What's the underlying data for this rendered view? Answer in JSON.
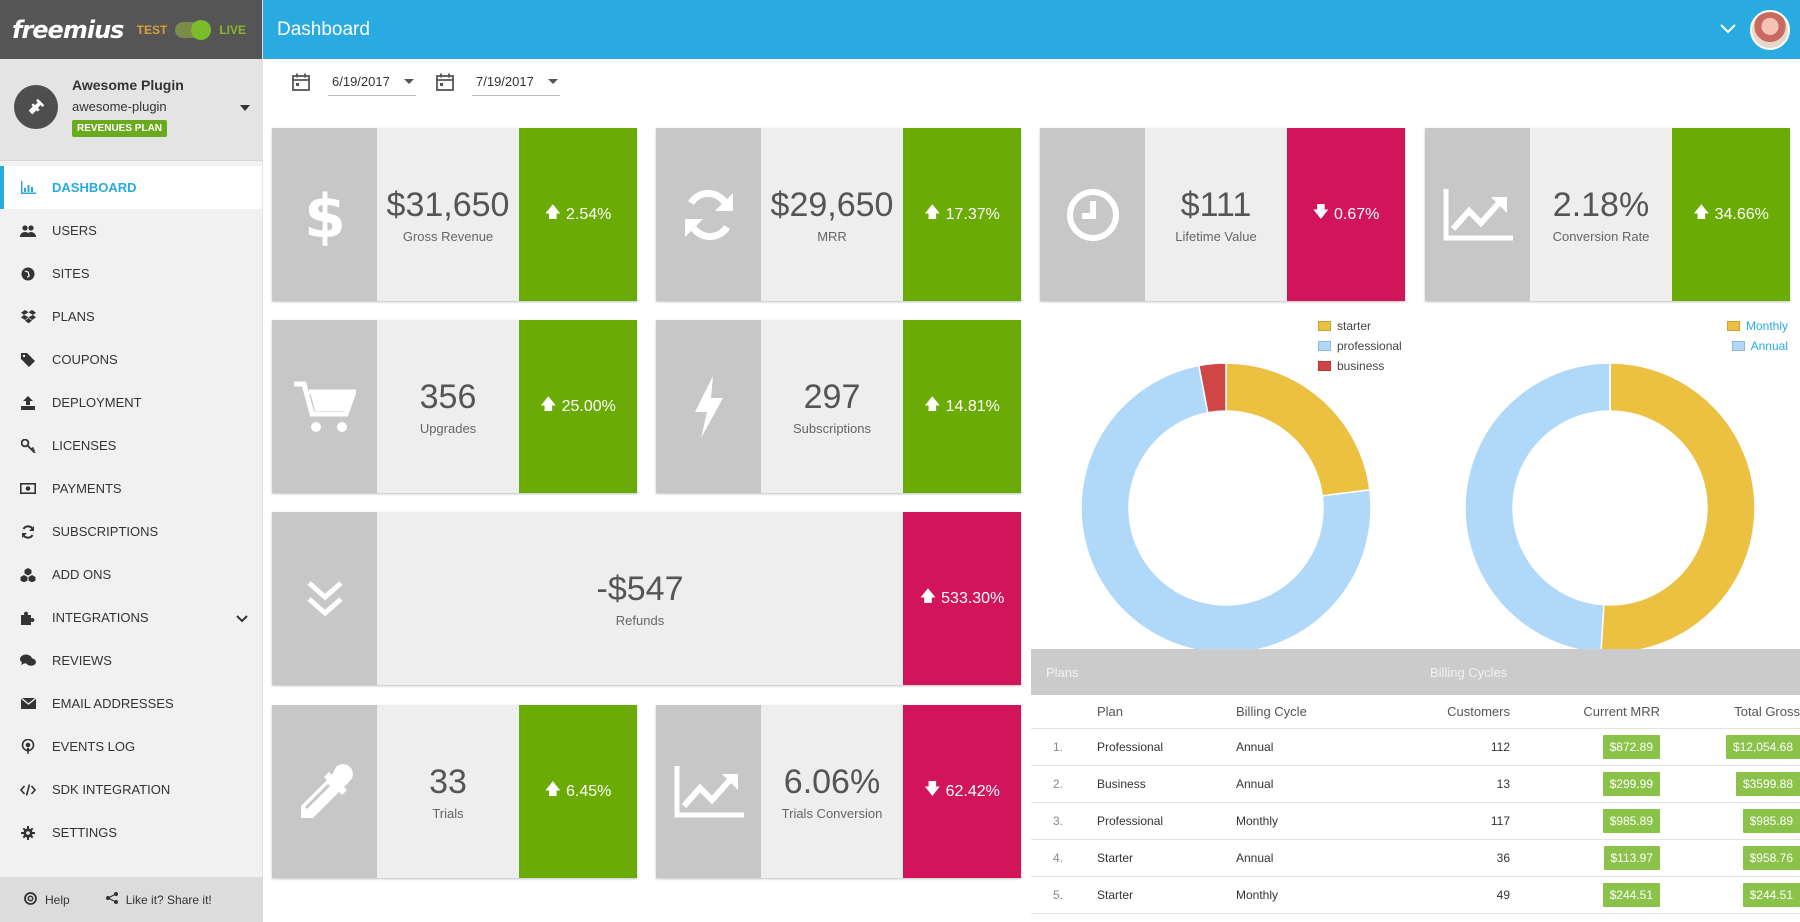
{
  "brand": {
    "logo": "freemius",
    "env_test": "TEST",
    "env_live": "LIVE"
  },
  "plugin": {
    "name": "Awesome Plugin",
    "slug": "awesome-plugin",
    "plan_badge": "REVENUES PLAN"
  },
  "nav": [
    {
      "label": "DASHBOARD",
      "icon": "bar-chart-icon",
      "active": true
    },
    {
      "label": "USERS",
      "icon": "users-icon"
    },
    {
      "label": "SITES",
      "icon": "globe-icon"
    },
    {
      "label": "PLANS",
      "icon": "dropbox-icon"
    },
    {
      "label": "COUPONS",
      "icon": "tag-icon"
    },
    {
      "label": "DEPLOYMENT",
      "icon": "upload-icon"
    },
    {
      "label": "LICENSES",
      "icon": "key-icon"
    },
    {
      "label": "PAYMENTS",
      "icon": "money-icon"
    },
    {
      "label": "SUBSCRIPTIONS",
      "icon": "refresh-icon"
    },
    {
      "label": "ADD ONS",
      "icon": "cubes-icon"
    },
    {
      "label": "INTEGRATIONS",
      "icon": "puzzle-icon"
    },
    {
      "label": "REVIEWS",
      "icon": "comments-icon"
    },
    {
      "label": "EMAIL ADDRESSES",
      "icon": "envelope-icon"
    },
    {
      "label": "EVENTS LOG",
      "icon": "podcast-icon"
    },
    {
      "label": "SDK INTEGRATION",
      "icon": "code-icon"
    },
    {
      "label": "SETTINGS",
      "icon": "gear-icon"
    }
  ],
  "footer": {
    "help": "Help",
    "share": "Like it? Share it!"
  },
  "header": {
    "title": "Dashboard"
  },
  "dates": {
    "start": "6/19/2017",
    "end": "7/19/2017"
  },
  "cards": {
    "gross_revenue": {
      "value": "$31,650",
      "label": "Gross Revenue",
      "change": "2.54%",
      "direction": "up"
    },
    "mrr": {
      "value": "$29,650",
      "label": "MRR",
      "change": "17.37%",
      "direction": "up"
    },
    "lifetime_value": {
      "value": "$111",
      "label": "Lifetime Value",
      "change": "0.67%",
      "direction": "down"
    },
    "conversion_rate": {
      "value": "2.18%",
      "label": "Conversion Rate",
      "change": "34.66%",
      "direction": "up"
    },
    "upgrades": {
      "value": "356",
      "label": "Upgrades",
      "change": "25.00%",
      "direction": "up"
    },
    "subscriptions": {
      "value": "297",
      "label": "Subscriptions",
      "change": "14.81%",
      "direction": "up"
    },
    "refunds": {
      "value": "-$547",
      "label": "Refunds",
      "change": "533.30%",
      "direction": "up"
    },
    "trials": {
      "value": "33",
      "label": "Trials",
      "change": "6.45%",
      "direction": "up"
    },
    "trials_conversion": {
      "value": "6.06%",
      "label": "Trials Conversion",
      "change": "62.42%",
      "direction": "down"
    }
  },
  "colors": {
    "up": "#6bab06",
    "down": "#d2145a",
    "accent": "#29abe2",
    "starter": "#ecc142",
    "professional": "#b0d8f8",
    "business": "#d04545"
  },
  "chart_data": [
    {
      "type": "pie",
      "categories": [
        "starter",
        "professional",
        "business"
      ],
      "values": [
        23,
        74,
        3
      ],
      "legend": "top-right"
    },
    {
      "type": "pie",
      "categories": [
        "Monthly",
        "Annual"
      ],
      "values": [
        51,
        49
      ],
      "legend": "top-right"
    }
  ],
  "table": {
    "group_plans": "Plans",
    "group_cycles": "Billing Cycles",
    "columns": {
      "plan": "Plan",
      "cycle": "Billing Cycle",
      "customers": "Customers",
      "mrr": "Current MRR",
      "gross": "Total Gross"
    },
    "rows": [
      {
        "idx": "1.",
        "plan": "Professional",
        "cycle": "Annual",
        "customers": "112",
        "mrr": "$872.89",
        "gross": "$12,054.68"
      },
      {
        "idx": "2.",
        "plan": "Business",
        "cycle": "Annual",
        "customers": "13",
        "mrr": "$299.99",
        "gross": "$3599.88"
      },
      {
        "idx": "3.",
        "plan": "Professional",
        "cycle": "Monthly",
        "customers": "117",
        "mrr": "$985.89",
        "gross": "$985.89"
      },
      {
        "idx": "4.",
        "plan": "Starter",
        "cycle": "Annual",
        "customers": "36",
        "mrr": "$113.97",
        "gross": "$958.76"
      },
      {
        "idx": "5.",
        "plan": "Starter",
        "cycle": "Monthly",
        "customers": "49",
        "mrr": "$244.51",
        "gross": "$244.51"
      }
    ]
  }
}
